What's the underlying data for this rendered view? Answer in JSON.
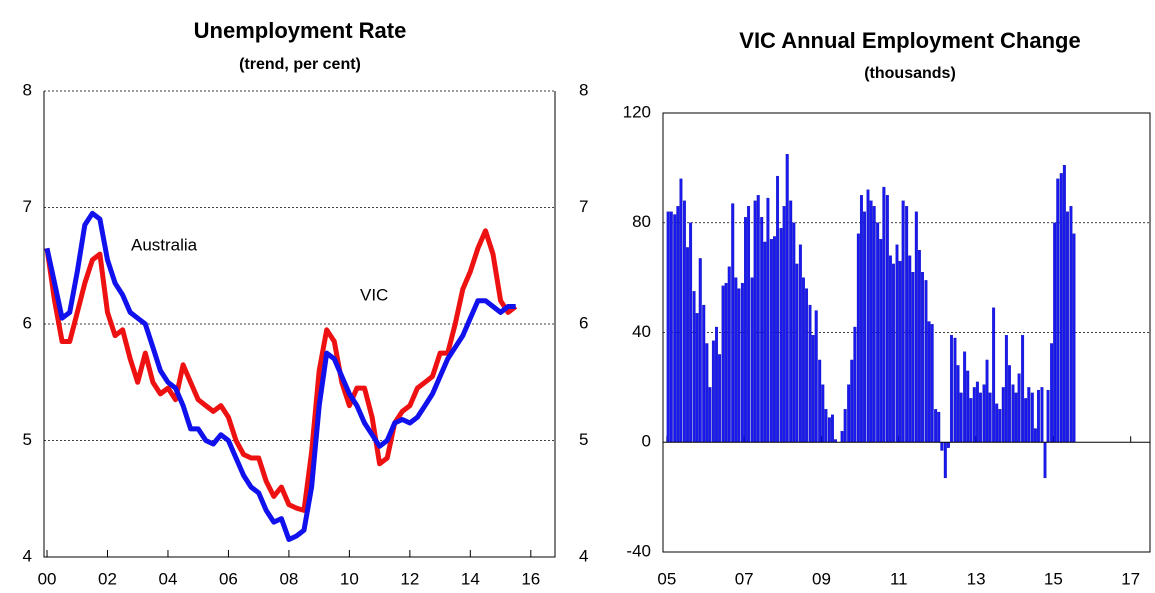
{
  "chart_data": [
    {
      "type": "line",
      "title": "Unemployment Rate",
      "subtitle": "(trend, per cent)",
      "x": [
        2000,
        2000.25,
        2000.5,
        2000.75,
        2001,
        2001.25,
        2001.5,
        2001.75,
        2002,
        2002.25,
        2002.5,
        2002.75,
        2003,
        2003.25,
        2003.5,
        2003.75,
        2004,
        2004.25,
        2004.5,
        2004.75,
        2005,
        2005.25,
        2005.5,
        2005.75,
        2006,
        2006.25,
        2006.5,
        2006.75,
        2007,
        2007.25,
        2007.5,
        2007.75,
        2008,
        2008.25,
        2008.5,
        2008.75,
        2009,
        2009.25,
        2009.5,
        2009.75,
        2010,
        2010.25,
        2010.5,
        2010.75,
        2011,
        2011.25,
        2011.5,
        2011.75,
        2012,
        2012.25,
        2012.5,
        2012.75,
        2013,
        2013.25,
        2013.5,
        2013.75,
        2014,
        2014.25,
        2014.5,
        2014.75,
        2015,
        2015.25,
        2015.5
      ],
      "series": [
        {
          "name": "VIC",
          "color": "#ee1111",
          "values": [
            6.65,
            6.2,
            5.85,
            5.85,
            6.1,
            6.35,
            6.55,
            6.6,
            6.1,
            5.9,
            5.95,
            5.7,
            5.5,
            5.75,
            5.5,
            5.4,
            5.45,
            5.35,
            5.65,
            5.5,
            5.35,
            5.3,
            5.25,
            5.3,
            5.2,
            5.0,
            4.88,
            4.85,
            4.85,
            4.65,
            4.52,
            4.6,
            4.45,
            4.42,
            4.4,
            4.9,
            5.6,
            5.95,
            5.85,
            5.5,
            5.3,
            5.45,
            5.45,
            5.2,
            4.8,
            4.85,
            5.15,
            5.25,
            5.3,
            5.45,
            5.5,
            5.55,
            5.75,
            5.75,
            6.0,
            6.3,
            6.45,
            6.65,
            6.8,
            6.6,
            6.2,
            6.1,
            6.15
          ]
        },
        {
          "name": "Australia",
          "color": "#1111ee",
          "values": [
            6.65,
            6.35,
            6.05,
            6.1,
            6.45,
            6.85,
            6.95,
            6.9,
            6.55,
            6.35,
            6.25,
            6.1,
            6.05,
            6.0,
            5.8,
            5.6,
            5.5,
            5.45,
            5.3,
            5.1,
            5.1,
            5.0,
            4.97,
            5.05,
            5.0,
            4.85,
            4.7,
            4.6,
            4.55,
            4.4,
            4.3,
            4.33,
            4.15,
            4.18,
            4.23,
            4.6,
            5.3,
            5.75,
            5.7,
            5.55,
            5.4,
            5.3,
            5.15,
            5.05,
            4.95,
            5.0,
            5.15,
            5.18,
            5.15,
            5.2,
            5.3,
            5.4,
            5.55,
            5.7,
            5.8,
            5.9,
            6.05,
            6.2,
            6.2,
            6.15,
            6.1,
            6.15,
            6.15
          ]
        }
      ],
      "xlim": [
        1999.9,
        2016.8
      ],
      "xticks": [
        {
          "value": 2000,
          "label": "00"
        },
        {
          "value": 2002,
          "label": "02"
        },
        {
          "value": 2004,
          "label": "04"
        },
        {
          "value": 2006,
          "label": "06"
        },
        {
          "value": 2008,
          "label": "08"
        },
        {
          "value": 2010,
          "label": "10"
        },
        {
          "value": 2012,
          "label": "12"
        },
        {
          "value": 2014,
          "label": "14"
        },
        {
          "value": 2016,
          "label": "16"
        }
      ],
      "ylim": [
        4,
        8
      ],
      "yticks": [
        4,
        5,
        6,
        7,
        8
      ],
      "grid": true
    },
    {
      "type": "bar",
      "title": "VIC Annual Employment Change",
      "subtitle": "(thousands)",
      "color": "#1a1aee",
      "x": [
        2005,
        2005.08,
        2005.17,
        2005.25,
        2005.33,
        2005.42,
        2005.5,
        2005.58,
        2005.67,
        2005.75,
        2005.83,
        2005.92,
        2006,
        2006.08,
        2006.17,
        2006.25,
        2006.33,
        2006.42,
        2006.5,
        2006.58,
        2006.67,
        2006.75,
        2006.83,
        2006.92,
        2007,
        2007.08,
        2007.17,
        2007.25,
        2007.33,
        2007.42,
        2007.5,
        2007.58,
        2007.67,
        2007.75,
        2007.83,
        2007.92,
        2008,
        2008.08,
        2008.17,
        2008.25,
        2008.33,
        2008.42,
        2008.5,
        2008.58,
        2008.67,
        2008.75,
        2008.83,
        2008.92,
        2009,
        2009.08,
        2009.17,
        2009.25,
        2009.33,
        2009.42,
        2009.5,
        2009.58,
        2009.67,
        2009.75,
        2009.83,
        2009.92,
        2010,
        2010.08,
        2010.17,
        2010.25,
        2010.33,
        2010.42,
        2010.5,
        2010.58,
        2010.67,
        2010.75,
        2010.83,
        2010.92,
        2011,
        2011.08,
        2011.17,
        2011.25,
        2011.33,
        2011.42,
        2011.5,
        2011.58,
        2011.67,
        2011.75,
        2011.83,
        2011.92,
        2012,
        2012.08,
        2012.17,
        2012.25,
        2012.33,
        2012.42,
        2012.5,
        2012.58,
        2012.67,
        2012.75,
        2012.83,
        2012.92,
        2013,
        2013.08,
        2013.17,
        2013.25,
        2013.33,
        2013.42,
        2013.5,
        2013.58,
        2013.67,
        2013.75,
        2013.83,
        2013.92,
        2014,
        2014.08,
        2014.17,
        2014.25,
        2014.33,
        2014.42,
        2014.5,
        2014.58,
        2014.67,
        2014.75,
        2014.83,
        2014.92,
        2015,
        2015.08,
        2015.17,
        2015.25,
        2015.33,
        2015.42,
        2015.5
      ],
      "values": [
        84,
        84,
        83,
        86,
        96,
        88,
        71,
        80,
        55,
        47,
        67,
        50,
        36,
        20,
        37,
        42,
        32,
        57,
        58,
        64,
        87,
        60,
        56,
        58,
        82,
        86,
        60,
        88,
        90,
        82,
        73,
        89,
        74,
        75,
        97,
        78,
        86,
        105,
        88,
        80,
        65,
        72,
        60,
        56,
        50,
        39,
        48,
        30,
        21,
        12,
        9,
        10,
        1,
        0,
        4,
        12,
        21,
        30,
        42,
        76,
        90,
        84,
        92,
        88,
        86,
        80,
        74,
        93,
        90,
        68,
        65,
        72,
        66,
        88,
        86,
        68,
        62,
        84,
        70,
        62,
        59,
        44,
        43,
        12,
        11,
        -3,
        -13,
        -2,
        39,
        38,
        28,
        18,
        33,
        26,
        16,
        20,
        22,
        18,
        21,
        30,
        18,
        49,
        14,
        12,
        20,
        39,
        28,
        21,
        18,
        25,
        39,
        16,
        20,
        18,
        5,
        19,
        20,
        -13,
        19,
        36,
        80,
        96,
        98,
        101,
        84,
        86,
        76
      ],
      "xlim": [
        2004.9,
        2017.5
      ],
      "xticks": [
        {
          "value": 2005,
          "label": "05"
        },
        {
          "value": 2007,
          "label": "07"
        },
        {
          "value": 2009,
          "label": "09"
        },
        {
          "value": 2011,
          "label": "11"
        },
        {
          "value": 2013,
          "label": "13"
        },
        {
          "value": 2015,
          "label": "15"
        },
        {
          "value": 2017,
          "label": "17"
        }
      ],
      "ylim": [
        -40,
        120
      ],
      "yticks": [
        -40,
        0,
        40,
        80,
        120
      ],
      "grid": true
    }
  ]
}
